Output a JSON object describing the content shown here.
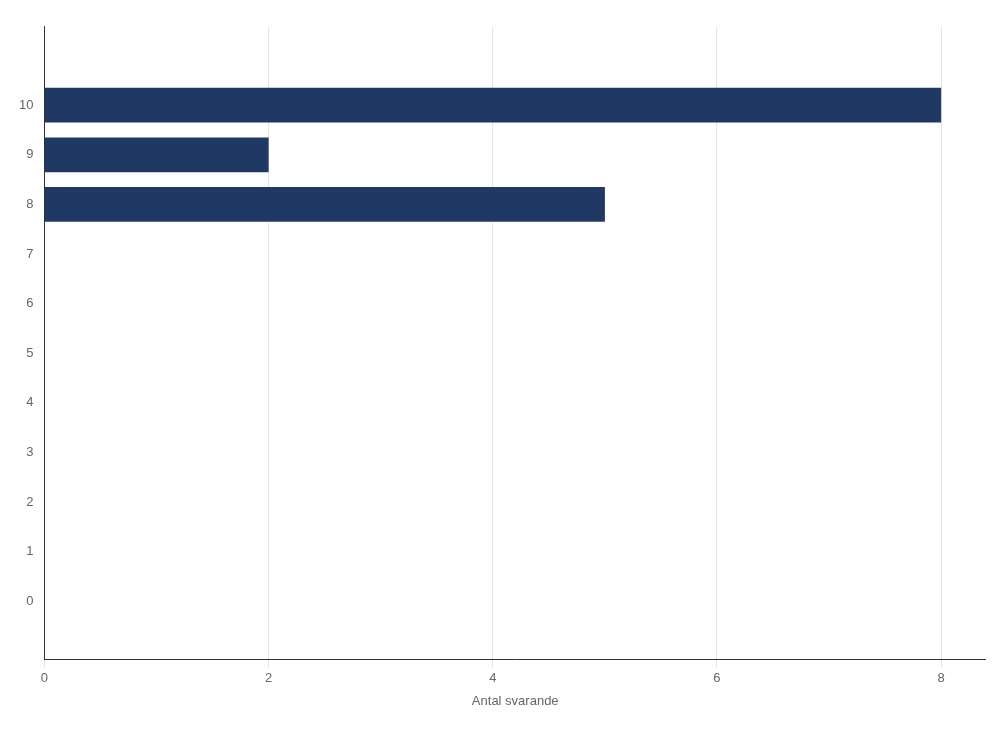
{
  "chart_data": {
    "type": "bar",
    "orientation": "horizontal",
    "categories": [
      0,
      1,
      2,
      3,
      4,
      5,
      6,
      7,
      8,
      9,
      10
    ],
    "values": [
      0,
      0,
      0,
      0,
      0,
      0,
      0,
      0,
      5,
      2,
      8
    ],
    "color": "#1F3864",
    "xlabel": "Antal svarande",
    "xlim": [
      0,
      8.4
    ],
    "xticks": [
      0,
      2,
      4,
      6,
      8
    ],
    "ylim": [
      -0.6,
      11.0
    ],
    "yticks": [
      0,
      1,
      2,
      3,
      4,
      5,
      6,
      7,
      8,
      9,
      10
    ],
    "grid": "x"
  }
}
